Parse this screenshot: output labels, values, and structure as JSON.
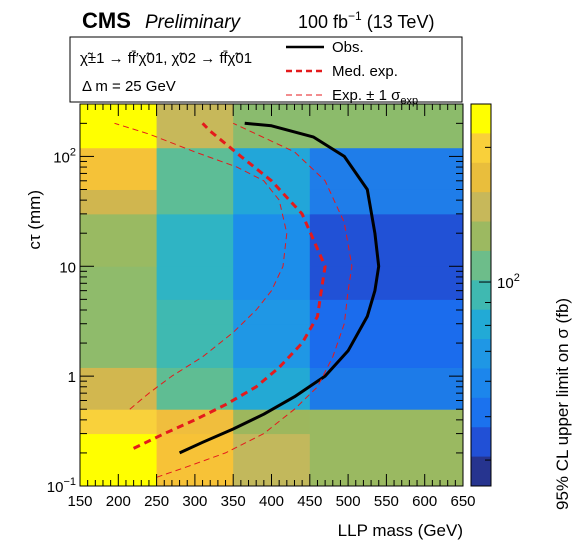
{
  "header": {
    "experiment": "CMS",
    "status": "Preliminary",
    "lumi_value": "100 fb",
    "lumi_exp": "−1",
    "energy": " (13 TeV)"
  },
  "legend": {
    "process_line": "χ̃±1 → ff̄′χ̃01, χ̃02 → ff̄χ̃01",
    "delta_m": "Δ m = 25 GeV",
    "obs_label": "Obs.",
    "med_label": "Med. exp.",
    "exp_label": "Exp. ± 1 σ",
    "exp_sub": "exp"
  },
  "colors": {
    "obs": "#000000",
    "med": "#e41a1c",
    "exp": "#e41a1c"
  },
  "chart_data": {
    "type": "heatmap",
    "xlabel": "LLP mass (GeV)",
    "ylabel": "cτ (mm)",
    "zlabel": "95% CL upper limit on σ (fb)",
    "xlim": [
      150,
      650
    ],
    "ylim": [
      0.1,
      300
    ],
    "y_scale": "log",
    "z_scale": "log",
    "x_ticks": [
      "150",
      "200",
      "250",
      "300",
      "350",
      "400",
      "450",
      "500",
      "550",
      "600",
      "650"
    ],
    "y_ticks": [
      {
        "value": 0.1,
        "base": "10",
        "exp": "−1"
      },
      {
        "value": 1,
        "base": "1",
        "exp": ""
      },
      {
        "value": 10,
        "base": "10",
        "exp": ""
      },
      {
        "value": 100,
        "base": "10",
        "exp": "2"
      }
    ],
    "z_ticks": [
      {
        "value": 100,
        "base": "10",
        "exp": "2"
      }
    ],
    "x_bins": [
      150,
      250,
      350,
      450,
      650
    ],
    "y_bins": [
      0.1,
      0.3,
      0.5,
      1.2,
      3,
      5,
      10,
      30,
      50,
      120,
      300
    ],
    "cells": [
      [
        "#ffff00",
        "#f7c237",
        "#c2b85c",
        "#9ab961"
      ],
      [
        "#f9d13b",
        "#f0be3d",
        "#9db75d",
        "#9ab961"
      ],
      [
        "#d2b74f",
        "#5fbd93",
        "#23a9d4",
        "#1d7be8"
      ],
      [
        "#8fbb6b",
        "#3fb9b1",
        "#1f97e5",
        "#1b6ced"
      ],
      [
        "#8fbb6b",
        "#3fb9b1",
        "#1f97e5",
        "#1b6ced"
      ],
      [
        "#8fbb6b",
        "#2fb4c4",
        "#1c8eea",
        "#2151d6"
      ],
      [
        "#99ba62",
        "#2fb4c4",
        "#1c8eea",
        "#2151d6"
      ],
      [
        "#d0b64f",
        "#5dbd96",
        "#22a6d9",
        "#1f7de9"
      ],
      [
        "#f5c238",
        "#5dbd96",
        "#22a6d9",
        "#1f7de9"
      ],
      [
        "#ffff00",
        "#c7b85a",
        "#8abb6e",
        "#8cbb6b"
      ]
    ],
    "palette": [
      "#ffff00",
      "#f9d03a",
      "#e9be3c",
      "#c7b85a",
      "#9cb961",
      "#6dbd8a",
      "#3fb9b1",
      "#22aad6",
      "#1f97e5",
      "#1c86ec",
      "#1b72ee",
      "#2150d6",
      "#26348f"
    ],
    "series": [
      {
        "name": "Obs.",
        "style": "solid",
        "x": [
          280,
          310,
          350,
          390,
          430,
          470,
          500,
          525,
          535,
          540,
          535,
          525,
          495,
          455,
          400,
          365
        ],
        "y": [
          0.2,
          0.25,
          0.33,
          0.45,
          0.65,
          1.0,
          1.7,
          3.5,
          6.0,
          10.0,
          20.0,
          50.0,
          100.0,
          150.0,
          190.0,
          200.0
        ]
      },
      {
        "name": "Med. exp.",
        "style": "dashed",
        "x": [
          220,
          260,
          300,
          340,
          380,
          410,
          440,
          460,
          465,
          470,
          440,
          400,
          360,
          320,
          310
        ],
        "y": [
          0.22,
          0.3,
          0.4,
          0.55,
          0.8,
          1.2,
          2.0,
          3.5,
          6.0,
          10.0,
          30.0,
          60.0,
          100.0,
          170.0,
          200.0
        ]
      },
      {
        "name": "Exp. +1σ",
        "style": "dashed-thin",
        "x": [
          215,
          240,
          270,
          310,
          350,
          380,
          400,
          415,
          420,
          410,
          390,
          355,
          300,
          240,
          195
        ],
        "y": [
          0.5,
          0.7,
          1.0,
          1.5,
          2.5,
          4.0,
          6.0,
          10.0,
          20.0,
          40.0,
          60.0,
          80.0,
          110.0,
          160.0,
          200.0
        ]
      },
      {
        "name": "Exp. −1σ",
        "style": "dashed-thin",
        "x": [
          250,
          290,
          340,
          390,
          430,
          460,
          480,
          495,
          500,
          505,
          495,
          470,
          430,
          380,
          350
        ],
        "y": [
          0.12,
          0.15,
          0.2,
          0.3,
          0.5,
          0.8,
          1.5,
          3.0,
          6.0,
          10.0,
          25.0,
          60.0,
          110.0,
          160.0,
          200.0
        ]
      }
    ]
  }
}
